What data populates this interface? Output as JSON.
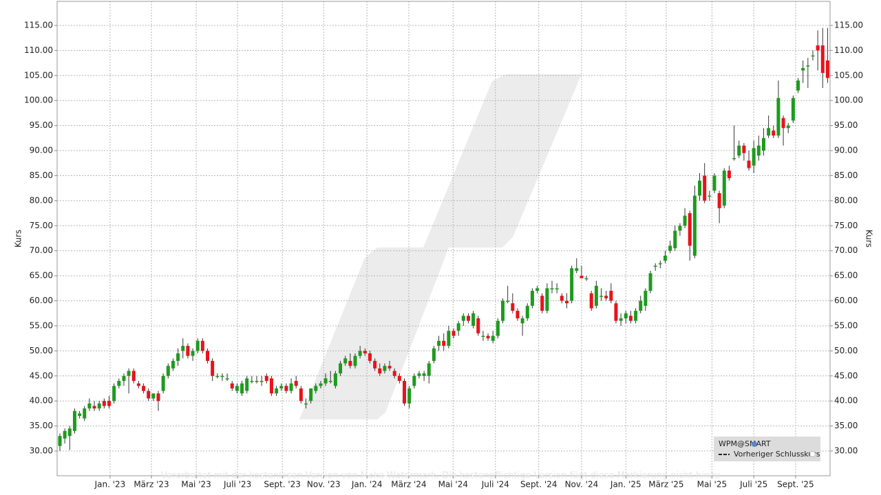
{
  "chart_data": {
    "type": "candlestick",
    "y_axis_label": "Kurs",
    "y2_axis_label": "Kurs",
    "watermark": "Verarbeitet mit der kostenlosen Version von Make-Watermark. Die kostenpflichtige Version fügt diese Markierung nicht hinzu",
    "legend": [
      "WPM@SMART",
      "Vorheriger Schlusskurs"
    ],
    "up_color": "#1e9b1e",
    "down_color": "#e8131b",
    "grid": true,
    "xlim": [
      -0.56,
      156.5
    ],
    "ylim": [
      25.06,
      119.8
    ],
    "y2lim": [
      25.06,
      119.8
    ],
    "xticks": [
      {
        "value": 10.2,
        "label": "Jan. '23"
      },
      {
        "value": 18.6,
        "label": "März '23"
      },
      {
        "value": 27.7,
        "label": "Mai '23"
      },
      {
        "value": 36.1,
        "label": "Juli '23"
      },
      {
        "value": 45.2,
        "label": "Sept. '23"
      },
      {
        "value": 53.6,
        "label": "Nov. '23"
      },
      {
        "value": 62.4,
        "label": "Jan. '24"
      },
      {
        "value": 70.9,
        "label": "März '24"
      },
      {
        "value": 79.9,
        "label": "Mai '24"
      },
      {
        "value": 88.5,
        "label": "Juli '24"
      },
      {
        "value": 97.3,
        "label": "Sept. '24"
      },
      {
        "value": 106.0,
        "label": "Nov. '24"
      },
      {
        "value": 115.0,
        "label": "Jan. '25"
      },
      {
        "value": 123.2,
        "label": "März '25"
      },
      {
        "value": 132.5,
        "label": "Mai '25"
      },
      {
        "value": 141.0,
        "label": "Juli '25"
      },
      {
        "value": 149.5,
        "label": "Sept. '25"
      }
    ],
    "yticks": [
      {
        "value": 30,
        "label": "30.00"
      },
      {
        "value": 35,
        "label": "35.00"
      },
      {
        "value": 40,
        "label": "40.00"
      },
      {
        "value": 45,
        "label": "45.00"
      },
      {
        "value": 50,
        "label": "50.00"
      },
      {
        "value": 55,
        "label": "55.00"
      },
      {
        "value": 60,
        "label": "60.00"
      },
      {
        "value": 65,
        "label": "65.00"
      },
      {
        "value": 70,
        "label": "70.00"
      },
      {
        "value": 75,
        "label": "75.00"
      },
      {
        "value": 80,
        "label": "80.00"
      },
      {
        "value": 85,
        "label": "85.00"
      },
      {
        "value": 90,
        "label": "90.00"
      },
      {
        "value": 95,
        "label": "95.00"
      },
      {
        "value": 100,
        "label": "100.00"
      },
      {
        "value": 105,
        "label": "105.00"
      },
      {
        "value": 110,
        "label": "110.00"
      },
      {
        "value": 115,
        "label": "115.00"
      }
    ],
    "y2ticks": [
      {
        "value": 30,
        "label": "30.00"
      },
      {
        "value": 35,
        "label": "35.00"
      },
      {
        "value": 40,
        "label": "40.00"
      },
      {
        "value": 45,
        "label": "45.00"
      },
      {
        "value": 50,
        "label": "50.00"
      },
      {
        "value": 55,
        "label": "55.00"
      },
      {
        "value": 60,
        "label": "60.00"
      },
      {
        "value": 65,
        "label": "65.00"
      },
      {
        "value": 70,
        "label": "70.00"
      },
      {
        "value": 75,
        "label": "75.00"
      },
      {
        "value": 80,
        "label": "80.00"
      },
      {
        "value": 85,
        "label": "85.00"
      },
      {
        "value": 90,
        "label": "90.00"
      },
      {
        "value": 95,
        "label": "95.00"
      },
      {
        "value": 100,
        "label": "100.00"
      },
      {
        "value": 105,
        "label": "105.00"
      },
      {
        "value": 110,
        "label": "110.00"
      },
      {
        "value": 115,
        "label": "115.00"
      }
    ],
    "ohlc": [
      [
        31,
        33.5,
        30,
        33
      ],
      [
        32.5,
        34.5,
        31.5,
        34
      ],
      [
        33,
        35,
        30.2,
        34.5
      ],
      [
        34,
        38.5,
        33.5,
        38
      ],
      [
        37,
        38,
        36.5,
        37.5
      ],
      [
        36.5,
        39,
        36,
        38.5
      ],
      [
        38.5,
        40.5,
        38,
        39.5
      ],
      [
        39,
        40,
        38,
        38.5
      ],
      [
        38.5,
        40,
        38,
        39.5
      ],
      [
        40,
        40.5,
        38.5,
        39
      ],
      [
        40,
        41,
        38.5,
        39
      ],
      [
        40,
        43.5,
        39.5,
        43
      ],
      [
        43,
        44.5,
        42.5,
        44
      ],
      [
        44,
        45.5,
        43,
        45
      ],
      [
        45,
        46.5,
        41.5,
        46
      ],
      [
        46,
        46.5,
        43.5,
        44
      ],
      [
        43.5,
        44,
        42.5,
        43
      ],
      [
        43,
        43.5,
        41.5,
        42
      ],
      [
        42,
        42.5,
        40,
        40.5
      ],
      [
        40.5,
        41.5,
        40,
        41.5
      ],
      [
        41.5,
        42,
        38,
        40
      ],
      [
        42,
        45.5,
        41.5,
        45
      ],
      [
        45,
        47.5,
        44.5,
        47
      ],
      [
        46.5,
        48.5,
        46,
        48
      ],
      [
        48,
        50.5,
        47,
        49.5
      ],
      [
        50,
        52.5,
        48.5,
        51
      ],
      [
        51,
        51.5,
        48.5,
        49
      ],
      [
        49,
        50.5,
        48,
        50
      ],
      [
        50,
        52.5,
        49.5,
        52
      ],
      [
        52,
        52.5,
        49.5,
        50
      ],
      [
        50,
        50.5,
        47.5,
        48
      ],
      [
        48,
        48.5,
        44,
        45
      ],
      [
        45,
        45.5,
        44.5,
        45
      ],
      [
        45,
        45.5,
        44,
        45
      ],
      [
        44.5,
        45.5,
        44,
        44.5
      ],
      [
        43.5,
        44,
        42,
        42.5
      ],
      [
        42,
        43.5,
        41.5,
        43
      ],
      [
        41.5,
        44,
        41,
        43.5
      ],
      [
        42,
        45,
        41.5,
        44.5
      ],
      [
        44,
        45,
        43.5,
        44
      ],
      [
        44,
        45,
        43.5,
        44
      ],
      [
        44,
        45,
        43,
        44
      ],
      [
        45,
        45.5,
        43.5,
        44
      ],
      [
        44.5,
        45,
        41,
        41.5
      ],
      [
        41.5,
        43,
        41,
        42.5
      ],
      [
        42.5,
        43.5,
        42,
        43
      ],
      [
        43,
        43.5,
        41.5,
        42
      ],
      [
        42,
        44.5,
        41.5,
        43.5
      ],
      [
        44,
        45,
        42.5,
        43
      ],
      [
        42.5,
        43,
        39.5,
        40
      ],
      [
        39.5,
        40.5,
        38.5,
        39.5
      ],
      [
        40,
        42.5,
        39.5,
        42.5
      ],
      [
        42,
        43.5,
        41.5,
        43
      ],
      [
        43,
        44,
        42.5,
        43.5
      ],
      [
        43.5,
        45.5,
        43,
        44.5
      ],
      [
        44,
        46,
        43.5,
        44
      ],
      [
        43,
        46,
        42.5,
        45.5
      ],
      [
        45.5,
        48,
        45,
        47.5
      ],
      [
        47.5,
        49,
        47,
        48.5
      ],
      [
        48,
        49.5,
        46.5,
        47
      ],
      [
        47,
        49.5,
        46.5,
        49
      ],
      [
        49,
        51,
        48.5,
        50
      ],
      [
        50,
        50.5,
        49,
        49.5
      ],
      [
        49.5,
        50,
        47.5,
        48
      ],
      [
        48,
        48.5,
        46,
        46.5
      ],
      [
        46.5,
        47.5,
        45,
        45.5
      ],
      [
        46,
        47.5,
        45.5,
        47
      ],
      [
        47,
        48,
        46,
        46.5
      ],
      [
        46,
        46.5,
        44.5,
        45
      ],
      [
        45,
        45.5,
        43.5,
        44
      ],
      [
        44,
        44.5,
        39,
        39.5
      ],
      [
        39.5,
        43,
        38.5,
        42.5
      ],
      [
        43,
        45.5,
        42.5,
        45
      ],
      [
        45,
        46,
        44.5,
        45.5
      ],
      [
        45,
        46,
        44,
        45.5
      ],
      [
        45,
        48,
        43.5,
        47.5
      ],
      [
        48,
        51,
        47.5,
        50.5
      ],
      [
        51,
        53,
        50,
        52
      ],
      [
        52,
        53.5,
        50,
        51
      ],
      [
        51,
        55,
        50.5,
        54
      ],
      [
        54,
        54.5,
        52.5,
        53
      ],
      [
        54,
        56,
        53,
        55.5
      ],
      [
        56,
        57.5,
        55,
        57
      ],
      [
        57,
        57.5,
        55.5,
        56
      ],
      [
        55,
        58,
        54.5,
        57.5
      ],
      [
        56.5,
        57,
        53,
        53.5
      ],
      [
        53,
        54,
        52,
        53
      ],
      [
        53,
        53.5,
        52,
        52.5
      ],
      [
        52,
        54,
        51.5,
        53
      ],
      [
        53,
        56.5,
        52.5,
        56
      ],
      [
        56,
        60.5,
        55.5,
        60
      ],
      [
        60,
        63,
        59.5,
        60
      ],
      [
        59.5,
        61.5,
        57.5,
        58
      ],
      [
        58,
        58.5,
        56,
        56.5
      ],
      [
        55.5,
        57,
        53,
        56.5
      ],
      [
        56.5,
        59.5,
        56,
        59
      ],
      [
        59,
        62.5,
        58.5,
        62
      ],
      [
        62,
        63,
        61.5,
        62.5
      ],
      [
        61,
        61.5,
        57.5,
        58
      ],
      [
        58,
        63.5,
        57.5,
        62.5
      ],
      [
        62.5,
        64,
        61.5,
        62.5
      ],
      [
        62.5,
        63.5,
        61.5,
        62.5
      ],
      [
        61,
        61.5,
        59.5,
        60
      ],
      [
        60,
        61.5,
        58.5,
        59.5
      ],
      [
        60,
        67,
        59.5,
        66.5
      ],
      [
        66,
        68.5,
        65.5,
        66.5
      ],
      [
        65,
        67,
        64.5,
        64.5
      ],
      [
        64.5,
        65,
        64,
        64.5
      ],
      [
        61.5,
        62,
        58,
        58.5
      ],
      [
        59,
        64,
        58.5,
        63
      ],
      [
        61,
        62.5,
        60,
        61
      ],
      [
        61,
        62,
        60,
        60.5
      ],
      [
        62,
        63.5,
        59.5,
        60
      ],
      [
        59.5,
        60,
        55.5,
        56
      ],
      [
        56,
        57.5,
        55,
        56.5
      ],
      [
        56.5,
        58,
        55.5,
        57.5
      ],
      [
        57,
        58,
        55.5,
        56
      ],
      [
        56,
        58.5,
        55.5,
        58
      ],
      [
        58,
        61,
        57.5,
        60
      ],
      [
        59,
        62.5,
        58,
        62
      ],
      [
        62,
        66,
        61.5,
        65.5
      ],
      [
        67,
        67.5,
        66,
        67
      ],
      [
        67.5,
        68,
        66.5,
        67.5
      ],
      [
        68,
        70,
        67.5,
        69
      ],
      [
        70,
        72,
        69.5,
        71
      ],
      [
        70.5,
        75,
        70,
        74
      ],
      [
        74,
        75.5,
        73,
        75
      ],
      [
        75,
        78.5,
        74.5,
        77
      ],
      [
        77.5,
        78,
        68,
        71
      ],
      [
        69,
        83,
        68.5,
        81
      ],
      [
        81,
        85.5,
        80,
        84
      ],
      [
        85,
        87.5,
        79.5,
        80
      ],
      [
        81,
        82,
        80,
        81
      ],
      [
        82,
        85.5,
        81.5,
        85
      ],
      [
        81.5,
        82,
        75.5,
        78.5
      ],
      [
        79,
        86.5,
        78.5,
        86
      ],
      [
        86,
        87,
        84,
        84.5
      ],
      [
        88.5,
        95,
        88,
        88.5
      ],
      [
        89,
        92,
        88.5,
        91
      ],
      [
        91,
        91.5,
        88,
        89.5
      ],
      [
        88,
        90,
        86,
        86.5
      ],
      [
        87,
        92,
        85.5,
        90.5
      ],
      [
        89,
        93,
        88,
        91
      ],
      [
        90,
        94.5,
        89,
        92.5
      ],
      [
        93,
        97,
        92.5,
        94.5
      ],
      [
        94,
        95,
        92.5,
        93
      ],
      [
        93,
        104,
        92.5,
        100.5
      ],
      [
        96.5,
        97,
        91,
        94.5
      ],
      [
        94.5,
        95.5,
        93.5,
        95
      ],
      [
        96,
        101,
        95.5,
        100.5
      ],
      [
        102,
        104.5,
        101.5,
        104
      ],
      [
        106,
        108,
        103.5,
        106.5
      ],
      [
        107,
        108.5,
        102.5,
        107
      ],
      [
        109,
        110,
        108,
        109
      ],
      [
        111,
        114,
        106,
        110
      ],
      [
        111,
        114.5,
        102.5,
        105.5
      ],
      [
        108,
        114.5,
        103.5,
        104.5
      ]
    ]
  }
}
